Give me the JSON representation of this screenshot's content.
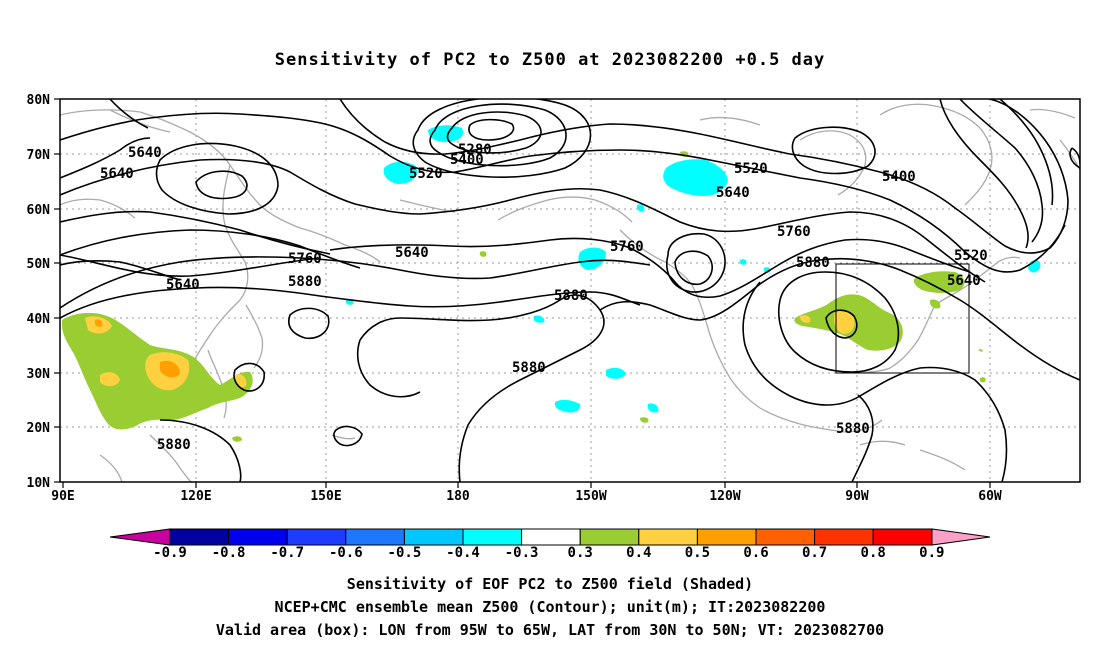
{
  "title": "Sensitivity of PC2 to Z500 at 2023082200 +0.5 day",
  "lat_labels": [
    "80N",
    "70N",
    "60N",
    "50N",
    "40N",
    "30N",
    "20N",
    "10N"
  ],
  "lon_labels": [
    "90E",
    "120E",
    "150E",
    "180",
    "150W",
    "120W",
    "90W",
    "60W"
  ],
  "contour_labels": [
    {
      "text": "5640",
      "id": "a"
    },
    {
      "text": "5640",
      "id": "b"
    },
    {
      "text": "5640",
      "id": "c"
    },
    {
      "text": "5640",
      "id": "d"
    },
    {
      "text": "5640",
      "id": "e"
    },
    {
      "text": "5640",
      "id": "f"
    },
    {
      "text": "5520",
      "id": "g"
    },
    {
      "text": "5520",
      "id": "h"
    },
    {
      "text": "5520",
      "id": "i"
    },
    {
      "text": "5400",
      "id": "j"
    },
    {
      "text": "5400",
      "id": "k"
    },
    {
      "text": "5280",
      "id": "l"
    },
    {
      "text": "5760",
      "id": "m"
    },
    {
      "text": "5760",
      "id": "n"
    },
    {
      "text": "5760",
      "id": "o"
    },
    {
      "text": "5880",
      "id": "p"
    },
    {
      "text": "5880",
      "id": "q"
    },
    {
      "text": "5880",
      "id": "r"
    },
    {
      "text": "5880",
      "id": "s"
    },
    {
      "text": "5880",
      "id": "t"
    },
    {
      "text": "5880",
      "id": "u"
    }
  ],
  "colorbar": {
    "labels": [
      "-0.9",
      "-0.8",
      "-0.7",
      "-0.6",
      "-0.5",
      "-0.4",
      "-0.3",
      "0.3",
      "0.4",
      "0.5",
      "0.6",
      "0.7",
      "0.8",
      "0.9"
    ],
    "colors": [
      "#0000a0",
      "#0000f0",
      "#1e3cff",
      "#1e78ff",
      "#00c8ff",
      "#00ffff",
      "#ffffff",
      "#9acd32",
      "#ffd040",
      "#ffa000",
      "#ff6000",
      "#ff3200",
      "#ff0000"
    ],
    "low_arrow_color": "#c800a0",
    "high_arrow_color": "#ffa0c8"
  },
  "captions": [
    "Sensitivity of EOF PC2 to Z500 field (Shaded)",
    "NCEP+CMC ensemble mean Z500 (Contour); unit(m); IT:2023082200",
    "Valid area (box): LON from 95W to 65W, LAT from 30N to 50N; VT: 2023082700"
  ],
  "valid_box": {
    "lon_w": "95W",
    "lon_e": "65W",
    "lat_s": "30N",
    "lat_n": "50N"
  }
}
